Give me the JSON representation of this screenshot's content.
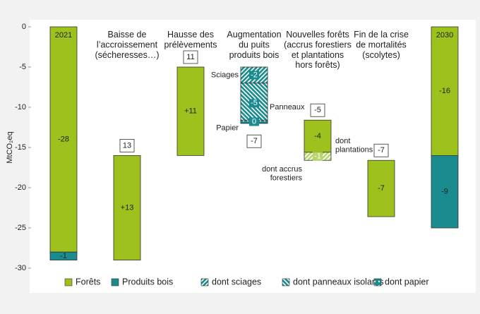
{
  "chart_data": {
    "type": "waterfall",
    "y_label": "MtCO₂eq",
    "ylim": [
      -30,
      0
    ],
    "yticks": [
      0,
      -5,
      -10,
      -15,
      -20,
      -25,
      -30
    ],
    "categories": [
      "2021",
      "Baisse de\nl’accroissement\n(sécheresses…)",
      "Hausse des\nprélèvements",
      "Augmentation\ndu puits\nproduits bois",
      "Nouvelles forêts\n(accrus forestiers\net plantations\nhors forêts)",
      "Fin de la crise\nde mortalités\n(scolytes)",
      "2030"
    ],
    "total_categories": [
      true,
      false,
      false,
      false,
      false,
      false,
      true
    ],
    "totals": [
      null,
      13,
      11,
      -7,
      -5,
      -7,
      null
    ],
    "series": [
      {
        "name": "Forêts",
        "color": "#9dc21d",
        "values": [
          -28,
          13,
          11,
          null,
          -4,
          -7,
          -16
        ],
        "value_labels": [
          "-28",
          "+13",
          "+11",
          null,
          "-4",
          "-7",
          "-16"
        ]
      },
      {
        "name": "Produits bois",
        "color": "#1a8b8f",
        "values": [
          -1,
          null,
          null,
          null,
          null,
          null,
          -9
        ]
      },
      {
        "name": "dont sciages",
        "color": "#1a8b8f",
        "pattern": "hatch",
        "values": [
          null,
          null,
          null,
          -2,
          null,
          null,
          null
        ]
      },
      {
        "name": "dont panneaux isolants",
        "color": "#1a8b8f",
        "pattern": "backhatch",
        "values": [
          null,
          null,
          null,
          -5,
          null,
          null,
          null
        ]
      },
      {
        "name": "dont papier",
        "color": "#1a8b8f",
        "pattern": "dots",
        "values": [
          null,
          null,
          null,
          0.4,
          null,
          null,
          null
        ],
        "value_labels": [
          null,
          null,
          null,
          "0",
          null,
          null,
          null
        ]
      },
      {
        "name": "dont accrus\nforestiers",
        "color": "#b7d66a",
        "pattern": "hatch",
        "legend": false,
        "values": [
          null,
          null,
          null,
          null,
          -1,
          null,
          null
        ]
      }
    ],
    "annotations": [
      "Sciages",
      "Panneaux",
      "Papier",
      "dont\nplantations"
    ]
  }
}
